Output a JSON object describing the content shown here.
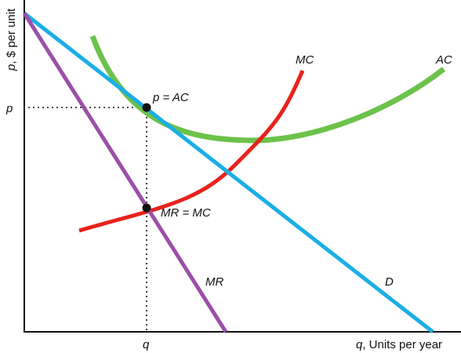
{
  "axes": {
    "y_label_var": "p",
    "y_label_rest": ", $ per unit",
    "x_label_var": "q",
    "x_label_rest": ", Units per year",
    "p_tick": "p",
    "q_tick": "q"
  },
  "curves": {
    "D": {
      "label": "D",
      "color": "#1aaee6"
    },
    "MR": {
      "label": "MR",
      "color": "#9b4fa8"
    },
    "MC": {
      "label": "MC",
      "color": "#e8221c"
    },
    "AC": {
      "label": "AC",
      "color": "#6cc24a"
    }
  },
  "points": {
    "p_eq_ac": "p = AC",
    "mr_eq_mc": "MR = MC"
  },
  "colors": {
    "axis": "#111111",
    "dot": "#111111"
  }
}
